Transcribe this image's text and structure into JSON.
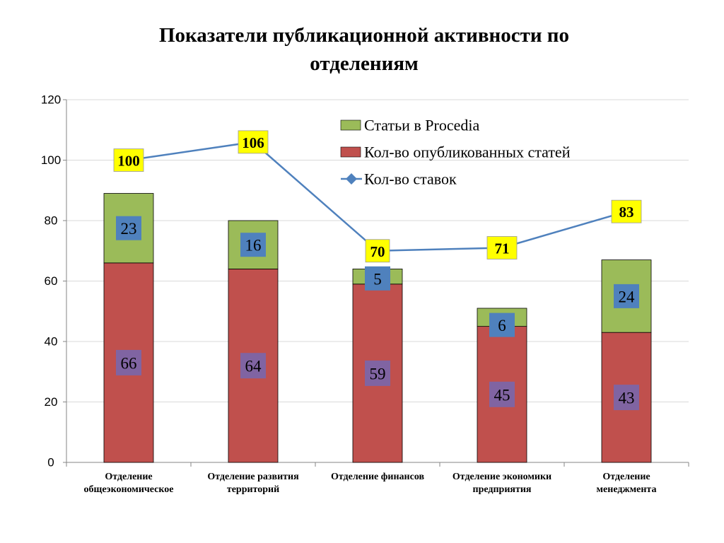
{
  "title_line1": "Показатели публикационной активности по",
  "title_line2": "отделениям",
  "colors": {
    "procedia": "#9bbb59",
    "published": "#c0504d",
    "rates_line": "#4f81bd",
    "procedia_label_bg": "#4f81bd",
    "published_label_bg": "#8064a2",
    "rates_label_bg": "#ffff00",
    "axis": "#868686",
    "grid": "#d9d9d9"
  },
  "chart_data": {
    "type": "bar",
    "stacked": true,
    "title": "Показатели публикационной активности по отделениям",
    "categories": [
      [
        "Отделение",
        "общеэкономическое"
      ],
      [
        "Отделение развития",
        "территорий"
      ],
      [
        "Отделение финансов"
      ],
      [
        "Отделение экономики",
        "предприятия"
      ],
      [
        "Отделение",
        "менеджмента"
      ]
    ],
    "series": [
      {
        "name": "Кол-во опубликованных статей",
        "type": "bar",
        "values": [
          66,
          64,
          59,
          45,
          43
        ]
      },
      {
        "name": "Статьи в Procedia",
        "type": "bar",
        "values": [
          23,
          16,
          5,
          6,
          24
        ]
      },
      {
        "name": "Кол-во ставок",
        "type": "line",
        "values": [
          100,
          106,
          70,
          71,
          83
        ]
      }
    ],
    "ylim": [
      0,
      120
    ],
    "yticks": [
      0,
      20,
      40,
      60,
      80,
      100,
      120
    ],
    "grid": true,
    "legend": {
      "placement": "top-right",
      "order": [
        "Статьи в Procedia",
        "Кол-во опубликованных статей",
        "Кол-во ставок"
      ]
    }
  }
}
